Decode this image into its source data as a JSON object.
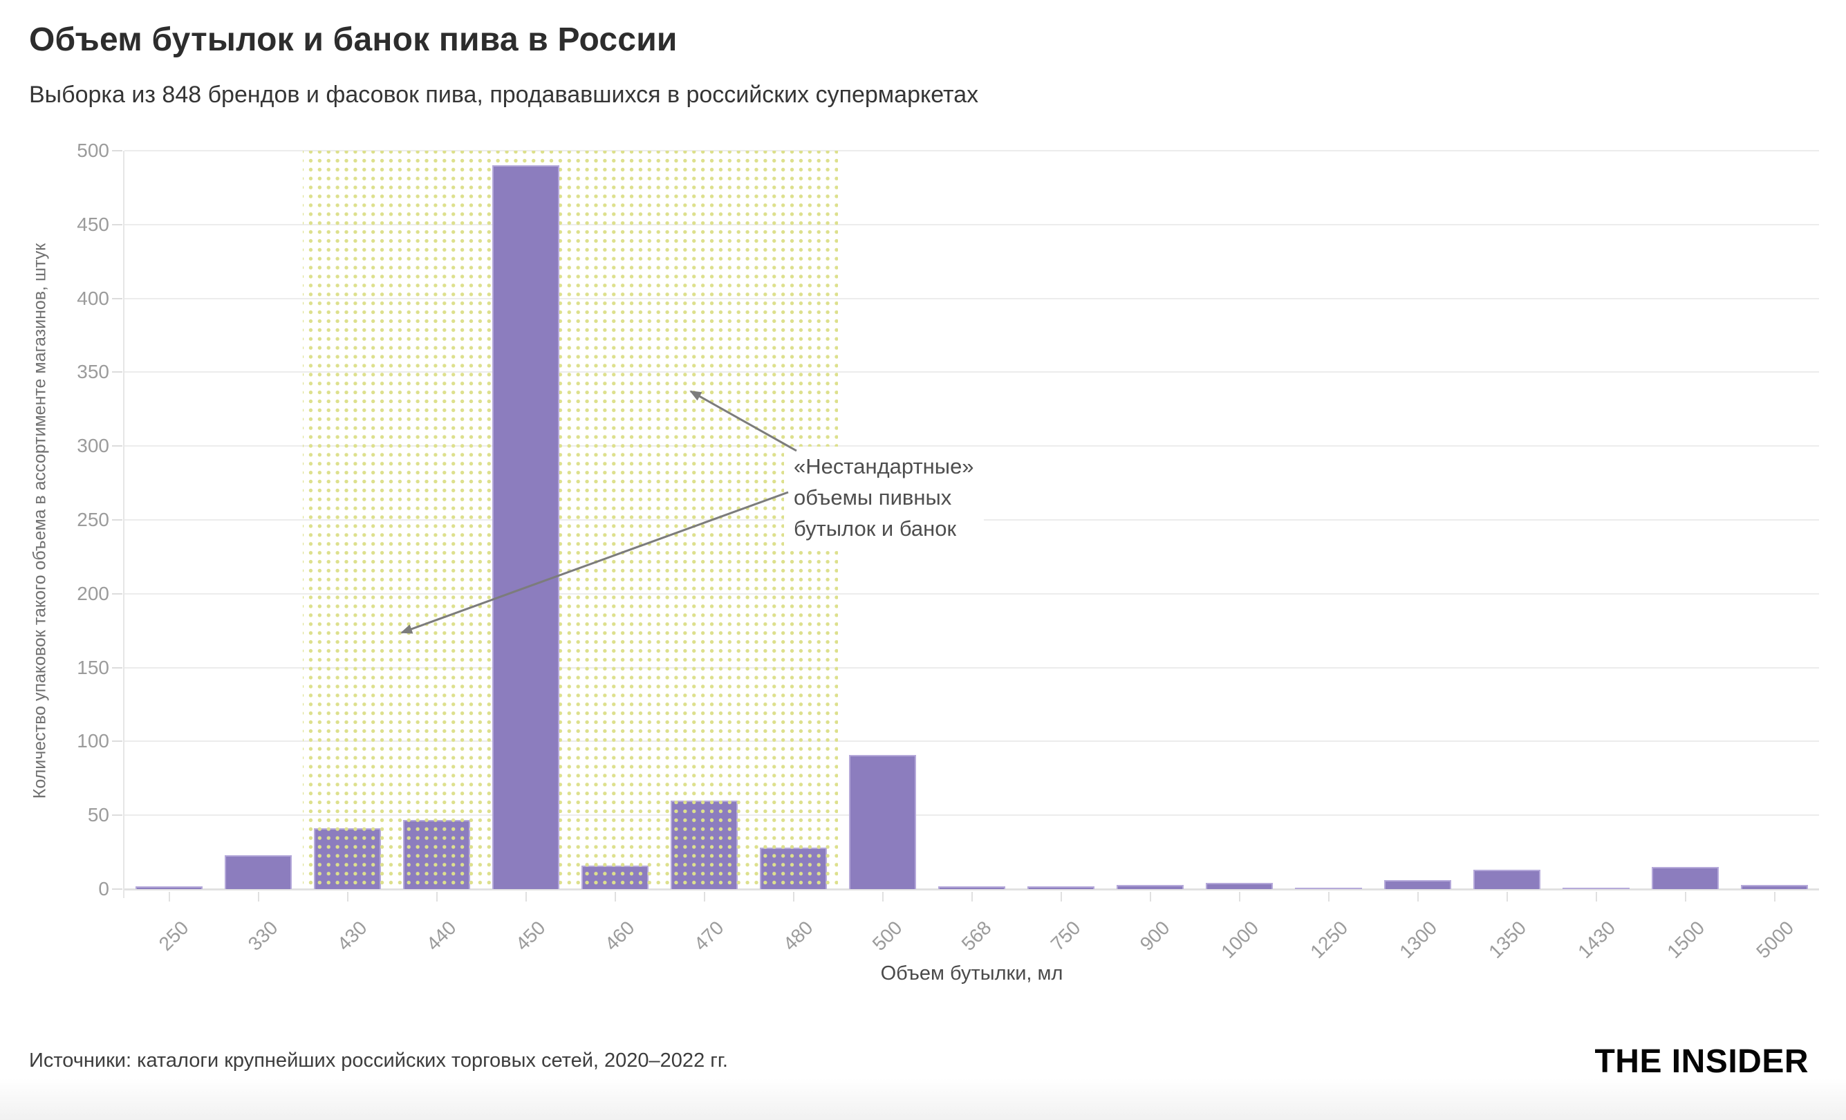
{
  "header": {
    "title": "Объем бутылок и банок пива в России",
    "subtitle": "Выборка из 848 брендов и фасовок пива, продававшихся в российских супермаркетах"
  },
  "chart_data": {
    "type": "bar",
    "categories": [
      "250",
      "330",
      "430",
      "440",
      "450",
      "460",
      "470",
      "480",
      "500",
      "568",
      "750",
      "900",
      "1000",
      "1250",
      "1300",
      "1350",
      "1430",
      "1500",
      "5000"
    ],
    "values": [
      2,
      23,
      41,
      47,
      490,
      16,
      60,
      28,
      91,
      2,
      2,
      3,
      4,
      1,
      6,
      13,
      1,
      15,
      3
    ],
    "total_sample": 848,
    "xlabel": "Объем бутылки, мл",
    "ylabel": "Количество упаковок такого объема в ассортименте магазинов, штук",
    "ylim": [
      0,
      500
    ],
    "ytick_step": 50,
    "grid": true,
    "legend": "none",
    "highlight_band": {
      "style": "yellow-dots",
      "categories": [
        "430",
        "440",
        "450",
        "460",
        "470",
        "480"
      ],
      "above_band_category": "450"
    },
    "annotation": {
      "text": "«Нестандартные»\nобъемы пивных\nбутылок и банок"
    },
    "colors": {
      "bar": "#8c7dbe",
      "bar_border": "#b5a9da",
      "band_dot": "#dde08d",
      "grid": "#ececec",
      "tick_text": "#9b9b9b",
      "arrow": "#7c7c7c"
    }
  },
  "footer": {
    "source": "Источники: каталоги крупнейших российских торговых сетей, 2020–2022 гг.",
    "logo": "THE INSIDER"
  }
}
